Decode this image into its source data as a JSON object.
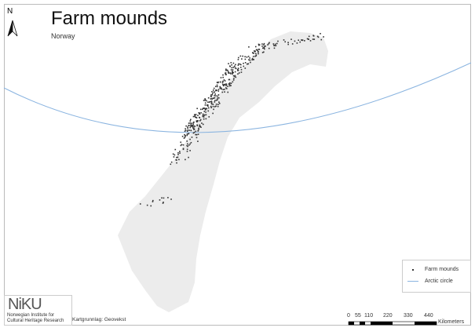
{
  "title": "Farm mounds",
  "subtitle": "Norway",
  "north_label": "N",
  "legend": [
    {
      "label": "Farm mounds",
      "symbol": "point",
      "color": "#333333"
    },
    {
      "label": "Arctic circle",
      "symbol": "line",
      "color": "#8ab4e0"
    }
  ],
  "logo": {
    "text": "NiKU",
    "line1": "Norwegian Institute for",
    "line2": "Cultural Heritage Research"
  },
  "credit": "Kartgrunnlag: Geovekst",
  "scalebar": {
    "ticks": [
      "0",
      "55",
      "110",
      "220",
      "330",
      "440"
    ],
    "unit": "Kilometers"
  },
  "colors": {
    "land": "#ececec",
    "points": "#333333",
    "arctic_circle": "#8ab4e0"
  }
}
